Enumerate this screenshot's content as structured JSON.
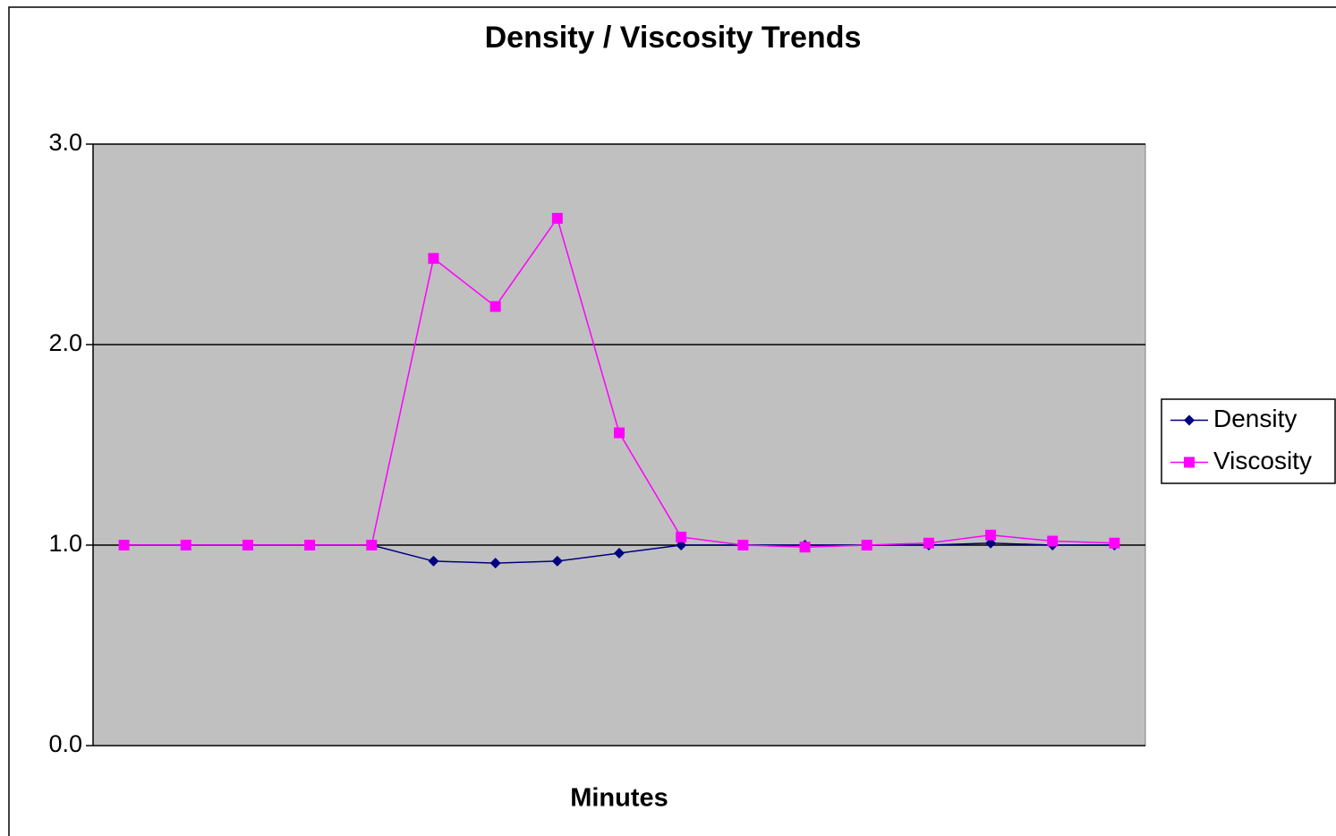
{
  "chart_data": {
    "type": "line",
    "title": "Density / Viscosity Trends",
    "x_label": "Minutes",
    "categories": [
      null,
      null,
      null,
      null,
      null,
      null,
      null,
      null,
      null,
      null,
      null,
      null,
      null,
      null,
      null,
      null,
      null
    ],
    "series": [
      {
        "name": "Density",
        "color": "#000080",
        "marker": "diamond",
        "values": [
          1.0,
          1.0,
          1.0,
          1.0,
          1.0,
          0.92,
          0.91,
          0.92,
          0.96,
          1.0,
          1.0,
          1.0,
          1.0,
          1.0,
          1.01,
          1.0,
          1.0
        ]
      },
      {
        "name": "Viscosity",
        "color": "#ff00ff",
        "marker": "square",
        "values": [
          1.0,
          1.0,
          1.0,
          1.0,
          1.0,
          2.43,
          2.19,
          2.63,
          1.56,
          1.04,
          1.0,
          0.99,
          1.0,
          1.01,
          1.05,
          1.02,
          1.01
        ]
      }
    ],
    "ylim": [
      0,
      3
    ],
    "yticks": [
      {
        "value": 0,
        "label": "0.0"
      },
      {
        "value": 1,
        "label": "1.0"
      },
      {
        "value": 2,
        "label": "2.0"
      },
      {
        "value": 3,
        "label": "3.0"
      }
    ],
    "grid": true,
    "plot_background": "#c0c0c0",
    "legend": "right"
  }
}
